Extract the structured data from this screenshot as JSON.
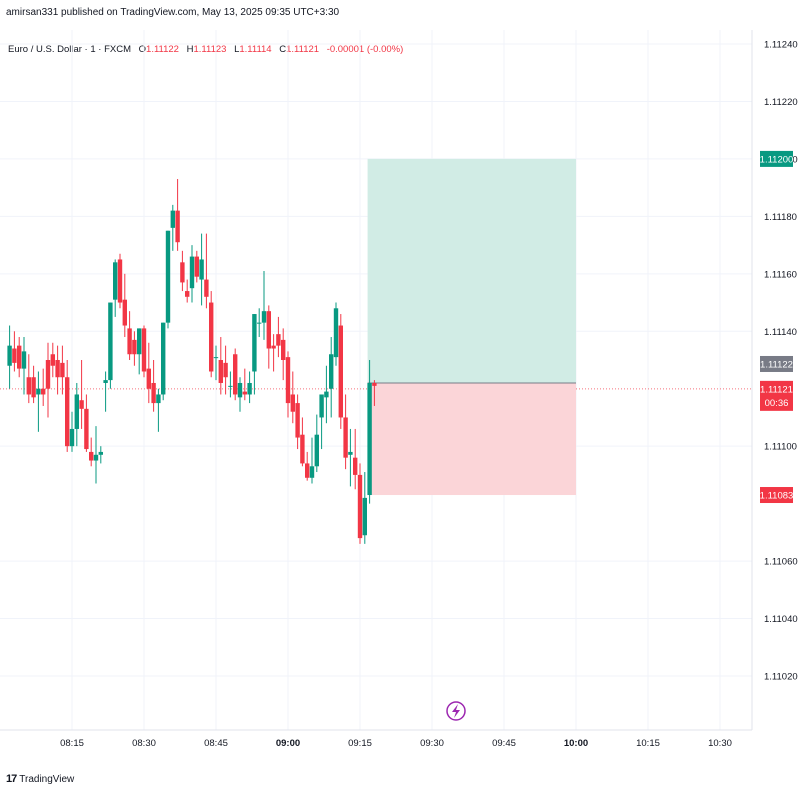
{
  "header": {
    "published": "amirsan331 published on TradingView.com, May 13, 2025 09:35 UTC+3:30"
  },
  "legend": {
    "symbol": "Euro / U.S. Dollar · 1 · FXCM",
    "open_key": "O",
    "open": "1.11122",
    "high_key": "H",
    "high": "1.11123",
    "low_key": "L",
    "low": "1.11114",
    "close_key": "C",
    "close": "1.11121",
    "change": "-0.00001 (-0.00%)"
  },
  "branding": {
    "logo": "17",
    "name": "TradingView"
  },
  "colors": {
    "up": "#089981",
    "down": "#f23645",
    "profit_zone": "#d1ece5",
    "loss_zone": "#fbd5d8",
    "grid": "#f0f3fa",
    "last_price_line": "#f23645",
    "badge_grey": "#787b86",
    "badge_green": "#089981",
    "badge_red": "#f23645",
    "icon_purple": "#9c27b0"
  },
  "icons": {
    "replay": "lightning-bolt-icon",
    "logo": "tradingview-logo-icon"
  },
  "chart_data": {
    "type": "candlestick",
    "title": "",
    "xlabel": "",
    "ylabel": "",
    "ylim": [
      1.1101,
      1.1125
    ],
    "y_ticks": [
      "1.11240",
      "1.11220",
      "1.11200",
      "1.11180",
      "1.11160",
      "1.11140",
      "1.11100",
      "1.11060",
      "1.11040",
      "1.11020"
    ],
    "x_ticks": [
      {
        "label": "08:15",
        "minute": 15,
        "bold": false
      },
      {
        "label": "08:30",
        "minute": 30,
        "bold": false
      },
      {
        "label": "08:45",
        "minute": 45,
        "bold": false
      },
      {
        "label": "09:00",
        "minute": 60,
        "bold": true
      },
      {
        "label": "09:15",
        "minute": 75,
        "bold": false
      },
      {
        "label": "09:30",
        "minute": 90,
        "bold": false
      },
      {
        "label": "09:45",
        "minute": 105,
        "bold": false
      },
      {
        "label": "10:00",
        "minute": 120,
        "bold": true
      },
      {
        "label": "10:15",
        "minute": 135,
        "bold": false
      },
      {
        "label": "10:30",
        "minute": 150,
        "bold": false
      }
    ],
    "x_range_minutes": [
      2,
      167
    ],
    "candles": [
      {
        "o": 1.11128,
        "h": 1.11142,
        "l": 1.1112,
        "c": 1.11135
      },
      {
        "o": 1.11134,
        "h": 1.1114,
        "l": 1.11126,
        "c": 1.11129
      },
      {
        "o": 1.11135,
        "h": 1.11138,
        "l": 1.11124,
        "c": 1.11127
      },
      {
        "o": 1.11127,
        "h": 1.11138,
        "l": 1.11118,
        "c": 1.11133
      },
      {
        "o": 1.11124,
        "h": 1.11132,
        "l": 1.11115,
        "c": 1.11118
      },
      {
        "o": 1.11124,
        "h": 1.11128,
        "l": 1.11115,
        "c": 1.11117
      },
      {
        "o": 1.11118,
        "h": 1.11126,
        "l": 1.11105,
        "c": 1.1112
      },
      {
        "o": 1.1112,
        "h": 1.11127,
        "l": 1.11114,
        "c": 1.11118
      },
      {
        "o": 1.1113,
        "h": 1.11136,
        "l": 1.1111,
        "c": 1.1112
      },
      {
        "o": 1.11132,
        "h": 1.11136,
        "l": 1.11124,
        "c": 1.11128
      },
      {
        "o": 1.1113,
        "h": 1.11135,
        "l": 1.11118,
        "c": 1.11124
      },
      {
        "o": 1.11129,
        "h": 1.11135,
        "l": 1.11118,
        "c": 1.11124
      },
      {
        "o": 1.11124,
        "h": 1.1113,
        "l": 1.11098,
        "c": 1.111
      },
      {
        "o": 1.111,
        "h": 1.11112,
        "l": 1.11098,
        "c": 1.11106
      },
      {
        "o": 1.11106,
        "h": 1.11122,
        "l": 1.111,
        "c": 1.11118
      },
      {
        "o": 1.11116,
        "h": 1.1113,
        "l": 1.11106,
        "c": 1.11113
      },
      {
        "o": 1.11113,
        "h": 1.11118,
        "l": 1.11098,
        "c": 1.11099
      },
      {
        "o": 1.11098,
        "h": 1.11103,
        "l": 1.11093,
        "c": 1.11095
      },
      {
        "o": 1.11095,
        "h": 1.11107,
        "l": 1.11087,
        "c": 1.11097
      },
      {
        "o": 1.11097,
        "h": 1.111,
        "l": 1.11094,
        "c": 1.11098
      },
      {
        "o": 1.11122,
        "h": 1.11126,
        "l": 1.11112,
        "c": 1.11123
      },
      {
        "o": 1.11123,
        "h": 1.1115,
        "l": 1.1112,
        "c": 1.1115
      },
      {
        "o": 1.11151,
        "h": 1.11165,
        "l": 1.11145,
        "c": 1.11164
      },
      {
        "o": 1.11165,
        "h": 1.11167,
        "l": 1.11148,
        "c": 1.1115
      },
      {
        "o": 1.11151,
        "h": 1.1116,
        "l": 1.11138,
        "c": 1.11142
      },
      {
        "o": 1.11141,
        "h": 1.11147,
        "l": 1.1113,
        "c": 1.11132
      },
      {
        "o": 1.11137,
        "h": 1.1114,
        "l": 1.11128,
        "c": 1.11132
      },
      {
        "o": 1.11132,
        "h": 1.11141,
        "l": 1.11125,
        "c": 1.11141
      },
      {
        "o": 1.11141,
        "h": 1.11142,
        "l": 1.11124,
        "c": 1.11126
      },
      {
        "o": 1.11127,
        "h": 1.11136,
        "l": 1.11115,
        "c": 1.1112
      },
      {
        "o": 1.11122,
        "h": 1.1113,
        "l": 1.11112,
        "c": 1.11115
      },
      {
        "o": 1.11115,
        "h": 1.1112,
        "l": 1.11105,
        "c": 1.11118
      },
      {
        "o": 1.11118,
        "h": 1.11143,
        "l": 1.11116,
        "c": 1.11143
      },
      {
        "o": 1.11143,
        "h": 1.11175,
        "l": 1.11141,
        "c": 1.11175
      },
      {
        "o": 1.11176,
        "h": 1.11184,
        "l": 1.11168,
        "c": 1.11182
      },
      {
        "o": 1.11182,
        "h": 1.11193,
        "l": 1.11168,
        "c": 1.11171
      },
      {
        "o": 1.11164,
        "h": 1.11168,
        "l": 1.11154,
        "c": 1.11157
      },
      {
        "o": 1.11154,
        "h": 1.11158,
        "l": 1.1115,
        "c": 1.11152
      },
      {
        "o": 1.11155,
        "h": 1.1117,
        "l": 1.1115,
        "c": 1.11166
      },
      {
        "o": 1.11166,
        "h": 1.11168,
        "l": 1.11157,
        "c": 1.11159
      },
      {
        "o": 1.11158,
        "h": 1.11174,
        "l": 1.11149,
        "c": 1.11165
      },
      {
        "o": 1.11158,
        "h": 1.11174,
        "l": 1.11148,
        "c": 1.11152
      },
      {
        "o": 1.1115,
        "h": 1.11154,
        "l": 1.11124,
        "c": 1.11126
      },
      {
        "o": 1.11131,
        "h": 1.11135,
        "l": 1.11123,
        "c": 1.11131
      },
      {
        "o": 1.1113,
        "h": 1.11138,
        "l": 1.11118,
        "c": 1.11122
      },
      {
        "o": 1.11129,
        "h": 1.11135,
        "l": 1.11118,
        "c": 1.11124
      },
      {
        "o": 1.11121,
        "h": 1.11126,
        "l": 1.11117,
        "c": 1.11121
      },
      {
        "o": 1.11132,
        "h": 1.11134,
        "l": 1.11116,
        "c": 1.11118
      },
      {
        "o": 1.11117,
        "h": 1.11124,
        "l": 1.11112,
        "c": 1.11122
      },
      {
        "o": 1.11119,
        "h": 1.11127,
        "l": 1.11116,
        "c": 1.11118
      },
      {
        "o": 1.11118,
        "h": 1.11126,
        "l": 1.11115,
        "c": 1.11122
      },
      {
        "o": 1.11126,
        "h": 1.11146,
        "l": 1.11118,
        "c": 1.11146
      },
      {
        "o": 1.11143,
        "h": 1.11148,
        "l": 1.11138,
        "c": 1.11143
      },
      {
        "o": 1.11143,
        "h": 1.11161,
        "l": 1.11137,
        "c": 1.11147
      },
      {
        "o": 1.11147,
        "h": 1.11149,
        "l": 1.11127,
        "c": 1.11134
      },
      {
        "o": 1.11135,
        "h": 1.11139,
        "l": 1.11126,
        "c": 1.11134
      },
      {
        "o": 1.11139,
        "h": 1.11145,
        "l": 1.11131,
        "c": 1.11135
      },
      {
        "o": 1.11137,
        "h": 1.11141,
        "l": 1.11123,
        "c": 1.1113
      },
      {
        "o": 1.11131,
        "h": 1.11133,
        "l": 1.1111,
        "c": 1.11115
      },
      {
        "o": 1.11118,
        "h": 1.11126,
        "l": 1.11108,
        "c": 1.11112
      },
      {
        "o": 1.11115,
        "h": 1.11118,
        "l": 1.11099,
        "c": 1.11103
      },
      {
        "o": 1.11104,
        "h": 1.1111,
        "l": 1.11093,
        "c": 1.11094
      },
      {
        "o": 1.11094,
        "h": 1.11098,
        "l": 1.11088,
        "c": 1.11089
      },
      {
        "o": 1.11089,
        "h": 1.11103,
        "l": 1.11087,
        "c": 1.11093
      },
      {
        "o": 1.11093,
        "h": 1.11111,
        "l": 1.11091,
        "c": 1.11104
      },
      {
        "o": 1.1111,
        "h": 1.11117,
        "l": 1.11099,
        "c": 1.11118
      },
      {
        "o": 1.11117,
        "h": 1.11128,
        "l": 1.11108,
        "c": 1.11119
      },
      {
        "o": 1.1112,
        "h": 1.11138,
        "l": 1.1111,
        "c": 1.11132
      },
      {
        "o": 1.11131,
        "h": 1.1115,
        "l": 1.11128,
        "c": 1.11148
      },
      {
        "o": 1.11142,
        "h": 1.11146,
        "l": 1.11106,
        "c": 1.1111
      },
      {
        "o": 1.1111,
        "h": 1.11118,
        "l": 1.11092,
        "c": 1.11096
      },
      {
        "o": 1.11097,
        "h": 1.11106,
        "l": 1.11086,
        "c": 1.11098
      },
      {
        "o": 1.11096,
        "h": 1.11106,
        "l": 1.11085,
        "c": 1.1109
      },
      {
        "o": 1.1109,
        "h": 1.11094,
        "l": 1.11066,
        "c": 1.11068
      },
      {
        "o": 1.11069,
        "h": 1.11091,
        "l": 1.11066,
        "c": 1.11082
      },
      {
        "o": 1.11083,
        "h": 1.1113,
        "l": 1.1108,
        "c": 1.11122
      },
      {
        "o": 1.11122,
        "h": 1.11123,
        "l": 1.11114,
        "c": 1.11121
      }
    ],
    "position": {
      "type": "long",
      "entry": 1.11122,
      "target": 1.112,
      "stop": 1.11083,
      "start_candle": 75,
      "end_minute": 120
    },
    "last_price": 1.11121,
    "price_badges": {
      "entry_label": "1.11122",
      "target_label": "1.11200",
      "last_label": "1.11121",
      "countdown": "00:36",
      "stop_label": "1.11083"
    }
  }
}
